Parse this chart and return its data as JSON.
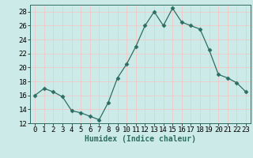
{
  "x": [
    0,
    1,
    2,
    3,
    4,
    5,
    6,
    7,
    8,
    9,
    10,
    11,
    12,
    13,
    14,
    15,
    16,
    17,
    18,
    19,
    20,
    21,
    22,
    23
  ],
  "y": [
    16.0,
    17.0,
    16.5,
    15.8,
    13.8,
    13.5,
    13.0,
    12.5,
    15.0,
    18.5,
    20.5,
    23.0,
    26.0,
    28.0,
    26.0,
    28.5,
    26.5,
    26.0,
    25.5,
    22.5,
    19.0,
    18.5,
    17.8,
    16.5
  ],
  "line_color": "#2d6e63",
  "marker": "D",
  "marker_size": 2.5,
  "bg_color": "#cceae8",
  "grid_color": "#f0c8c8",
  "xlabel": "Humidex (Indice chaleur)",
  "ylim": [
    12,
    29
  ],
  "xlim": [
    -0.5,
    23.5
  ],
  "yticks": [
    12,
    14,
    16,
    18,
    20,
    22,
    24,
    26,
    28
  ],
  "xticks": [
    0,
    1,
    2,
    3,
    4,
    5,
    6,
    7,
    8,
    9,
    10,
    11,
    12,
    13,
    14,
    15,
    16,
    17,
    18,
    19,
    20,
    21,
    22,
    23
  ],
  "label_fontsize": 7,
  "tick_fontsize": 6.5
}
